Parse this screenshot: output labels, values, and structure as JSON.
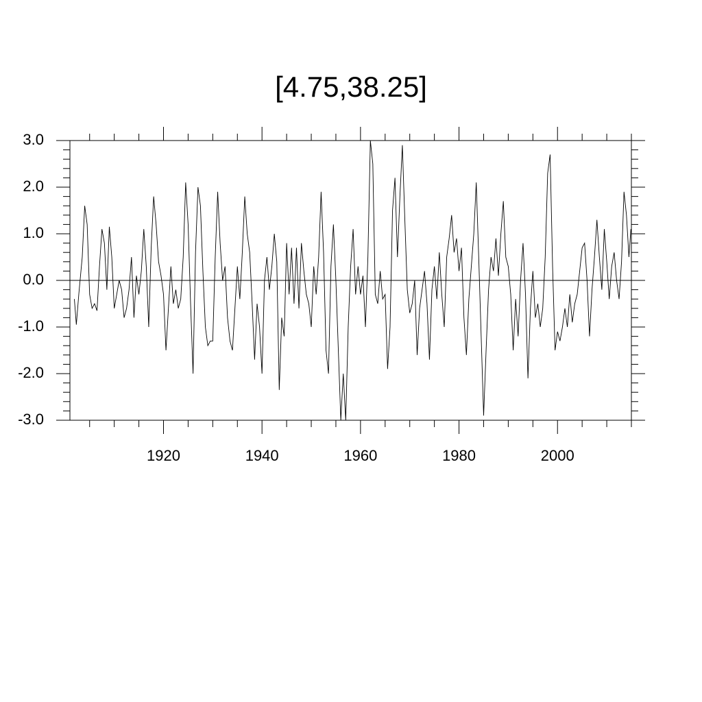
{
  "chart_data": {
    "type": "line",
    "title": "[4.75,38.25]",
    "color": "#000000",
    "x": [
      1901.9,
      1902.3,
      1902.8,
      1903.5,
      1904,
      1904.5,
      1905,
      1905.5,
      1906,
      1906.5,
      1907,
      1907.5,
      1908,
      1908.5,
      1909,
      1909.5,
      1910,
      1910.5,
      1911,
      1911.5,
      1912,
      1912.5,
      1913,
      1913.5,
      1914,
      1914.5,
      1915,
      1915.5,
      1916,
      1916.5,
      1917,
      1917.5,
      1918,
      1918.5,
      1919,
      1919.5,
      1920,
      1920.5,
      1921,
      1921.5,
      1922,
      1922.5,
      1923,
      1923.5,
      1924,
      1924.5,
      1925,
      1925.5,
      1926,
      1926.5,
      1927,
      1927.5,
      1928,
      1928.5,
      1929,
      1929.5,
      1930,
      1930.5,
      1931,
      1931.5,
      1932,
      1932.5,
      1933,
      1933.5,
      1934,
      1934.5,
      1935,
      1935.5,
      1936,
      1936.5,
      1937,
      1937.5,
      1938,
      1938.5,
      1939,
      1939.5,
      1940,
      1940.5,
      1941,
      1941.5,
      1942,
      1942.5,
      1943,
      1943.5,
      1944,
      1944.5,
      1945,
      1945.5,
      1946,
      1946.5,
      1947,
      1947.5,
      1948,
      1948.5,
      1949,
      1949.5,
      1950,
      1950.5,
      1951,
      1951.5,
      1952,
      1952.5,
      1953,
      1953.5,
      1954,
      1954.5,
      1955,
      1955.5,
      1956,
      1956.5,
      1957,
      1957.5,
      1958,
      1958.5,
      1959,
      1959.5,
      1960,
      1960.5,
      1961,
      1961.5,
      1962,
      1962.5,
      1963,
      1963.5,
      1964,
      1964.5,
      1965,
      1965.5,
      1966,
      1966.5,
      1967,
      1967.5,
      1968,
      1968.5,
      1969,
      1969.5,
      1970,
      1970.5,
      1971,
      1971.5,
      1972,
      1972.5,
      1973,
      1973.5,
      1974,
      1974.5,
      1975,
      1975.5,
      1976,
      1976.5,
      1977,
      1977.5,
      1978,
      1978.5,
      1979,
      1979.5,
      1980,
      1980.5,
      1981,
      1981.5,
      1982,
      1982.5,
      1983,
      1983.5,
      1984,
      1984.5,
      1985,
      1985.5,
      1986,
      1986.5,
      1987,
      1987.5,
      1988,
      1988.5,
      1989,
      1989.5,
      1990,
      1990.5,
      1991,
      1991.5,
      1992,
      1992.5,
      1993,
      1993.5,
      1994,
      1994.5,
      1995,
      1995.5,
      1996,
      1996.5,
      1997,
      1997.5,
      1998,
      1998.5,
      1999,
      1999.5,
      2000,
      2000.5,
      2001,
      2001.5,
      2002,
      2002.5,
      2003,
      2003.5,
      2004,
      2004.5,
      2005,
      2005.5,
      2006,
      2006.5,
      2007,
      2007.5,
      2008,
      2008.5,
      2009,
      2009.5,
      2010,
      2010.5,
      2011,
      2011.5,
      2012,
      2012.5,
      2013,
      2013.5,
      2014,
      2014.5,
      2014.9
    ],
    "values": [
      -0.4,
      -0.95,
      -0.3,
      0.5,
      1.6,
      1.2,
      -0.3,
      -0.6,
      -0.5,
      -0.65,
      0.3,
      1.1,
      0.8,
      -0.2,
      1.15,
      0.5,
      -0.6,
      -0.3,
      0.0,
      -0.2,
      -0.8,
      -0.6,
      -0.2,
      0.5,
      -0.8,
      0.1,
      -0.3,
      0.2,
      1.1,
      0.3,
      -1.0,
      0.7,
      1.8,
      1.2,
      0.4,
      0.1,
      -0.3,
      -1.5,
      -0.6,
      0.3,
      -0.5,
      -0.2,
      -0.6,
      -0.4,
      0.5,
      2.1,
      1.2,
      -0.5,
      -2.0,
      0.6,
      2.0,
      1.6,
      0.2,
      -1.0,
      -1.4,
      -1.3,
      -1.3,
      0.5,
      1.9,
      0.8,
      0.0,
      0.3,
      -0.8,
      -1.3,
      -1.5,
      -0.6,
      0.3,
      -0.4,
      0.6,
      1.8,
      1.0,
      0.6,
      -0.5,
      -1.7,
      -0.5,
      -1.0,
      -2.0,
      0.0,
      0.5,
      -0.2,
      0.3,
      1.0,
      0.4,
      -2.35,
      -0.8,
      -1.2,
      0.8,
      -0.3,
      0.7,
      -0.5,
      0.7,
      -0.6,
      0.8,
      0.2,
      -0.3,
      -0.5,
      -1.0,
      0.3,
      -0.3,
      0.5,
      1.9,
      0.6,
      -1.5,
      -2.0,
      0.3,
      1.2,
      0.0,
      -1.5,
      -3.0,
      -2.0,
      -3.0,
      -1.0,
      0.3,
      1.1,
      -0.3,
      0.3,
      -0.3,
      0.1,
      -1.0,
      0.5,
      3.0,
      2.5,
      -0.3,
      -0.5,
      0.2,
      -0.4,
      -0.3,
      -1.9,
      -1.0,
      1.5,
      2.2,
      0.5,
      1.8,
      2.9,
      1.3,
      -0.2,
      -0.7,
      -0.5,
      0.0,
      -1.6,
      -0.6,
      -0.2,
      0.2,
      -0.5,
      -1.7,
      -0.2,
      0.3,
      -0.4,
      0.6,
      -0.3,
      -1.0,
      0.5,
      0.9,
      1.4,
      0.6,
      0.9,
      0.2,
      0.7,
      -0.8,
      -1.6,
      -0.4,
      0.3,
      1.0,
      2.1,
      0.5,
      -1.2,
      -2.9,
      -1.5,
      -0.2,
      0.5,
      0.2,
      0.9,
      0.1,
      1.0,
      1.7,
      0.5,
      0.3,
      -0.3,
      -1.5,
      -0.4,
      -1.2,
      0.0,
      0.8,
      -0.3,
      -2.1,
      -0.6,
      0.2,
      -0.8,
      -0.5,
      -1.0,
      -0.6,
      0.5,
      2.3,
      2.7,
      0.3,
      -1.5,
      -1.1,
      -1.3,
      -1.0,
      -0.6,
      -1.0,
      -0.3,
      -0.9,
      -0.5,
      -0.3,
      0.2,
      0.7,
      0.8,
      0.0,
      -1.2,
      -0.2,
      0.5,
      1.3,
      0.5,
      -0.2,
      1.1,
      0.4,
      -0.4,
      0.3,
      0.6,
      0.0,
      -0.4,
      0.4,
      1.9,
      1.4,
      0.5,
      1.1
    ],
    "xlim": [
      1901,
      2015
    ],
    "xticks": [
      1920,
      1940,
      1960,
      1980,
      2000
    ],
    "xminorticks": [
      1905,
      1910,
      1915,
      1925,
      1930,
      1935,
      1945,
      1950,
      1955,
      1965,
      1970,
      1975,
      1985,
      1990,
      1995,
      2005,
      2010,
      2015
    ],
    "ylim": [
      -3,
      3
    ],
    "yticks": [
      {
        "value": -3,
        "label": "-3.0"
      },
      {
        "value": -2,
        "label": "-2.0"
      },
      {
        "value": -1,
        "label": "-1.0"
      },
      {
        "value": 0,
        "label": "0.0"
      },
      {
        "value": 1,
        "label": "1.0"
      },
      {
        "value": 2,
        "label": "2.0"
      },
      {
        "value": 3,
        "label": "3.0"
      }
    ],
    "yminorticks": [
      -2.8,
      -2.6,
      -2.4,
      -2.2,
      -1.8,
      -1.6,
      -1.4,
      -1.2,
      -0.8,
      -0.6,
      -0.4,
      -0.2,
      0.2,
      0.4,
      0.6,
      0.8,
      1.2,
      1.4,
      1.6,
      1.8,
      2.2,
      2.4,
      2.6,
      2.8
    ],
    "reference_line": 0
  }
}
